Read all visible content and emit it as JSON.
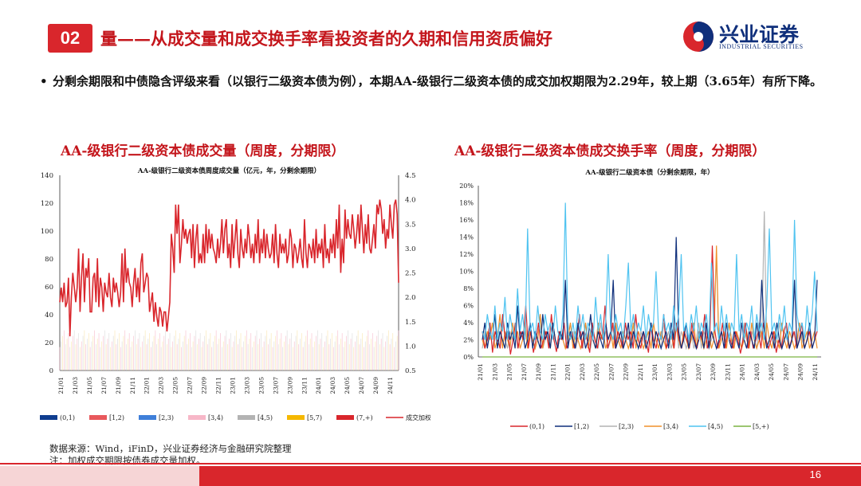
{
  "header": {
    "badge": "02",
    "title": "量——从成交量和成交换手率看投资者的久期和信用资质偏好"
  },
  "logo": {
    "name_cn": "兴业证券",
    "name_en": "INDUSTRIAL SECURITIES",
    "icon": "industrial-securities-logo-icon"
  },
  "bullet": {
    "dot": "•",
    "text": "分剩余期限和中债隐含评级来看（以银行二级资本债为例），本期AA-级银行二级资本债的成交加权期限为2.29年，较上期（3.65年）有所下降。"
  },
  "panels": {
    "left_title": "AA-级银行二级资本债成交量（周度，分期限）",
    "right_title": "AA-级银行二级资本债成交换手率（周度，分期限）"
  },
  "notes": {
    "source": "数据来源：Wind，iFinD，兴业证券经济与金融研究院整理",
    "remark": "注：加权成交期限按债券成交量加权。"
  },
  "page_number": "16",
  "colors": {
    "brand_red": "#d9262c",
    "brand_blue": "#0f2f7b"
  },
  "chart_data": [
    {
      "type": "bar",
      "title": "AA-级银行二级资本债周度成交量（亿元，年，分剩余期限）",
      "ylim": [
        0,
        140
      ],
      "y_ticks": [
        "0",
        "20",
        "40",
        "60",
        "80",
        "100",
        "120",
        "140"
      ],
      "y2lim": [
        0.5,
        4.5
      ],
      "y2_ticks": [
        "0.5",
        "1.0",
        "1.5",
        "2.0",
        "2.5",
        "3.0",
        "3.5",
        "4.0",
        "4.5"
      ],
      "x_ticks": [
        "21/01",
        "21/03",
        "21/05",
        "21/07",
        "21/09",
        "21/11",
        "22/01",
        "22/03",
        "22/05",
        "22/07",
        "22/09",
        "22/11",
        "23/01",
        "23/03",
        "23/05",
        "23/07",
        "23/09",
        "23/11",
        "24/01",
        "24/03",
        "24/05",
        "24/07",
        "24/09",
        "24/11"
      ],
      "legend": [
        "(0,1)",
        "[1,2)",
        "[2,3)",
        "[3,4)",
        "[4,5)",
        "[5,7)",
        "(7,+)",
        "成交加权期限，右"
      ],
      "series_colors": [
        "#0f3d8f",
        "#e8585c",
        "#3f7fd9",
        "#f7b7c8",
        "#b3b3b3",
        "#f5b800",
        "#d9262c",
        "#d9262c"
      ],
      "series": [
        {
          "name": "成交加权期限，右",
          "axis": "right",
          "values": [
            1.9,
            2.2,
            1.9,
            2.3,
            1.8,
            1.9,
            2.4,
            1.2,
            2.0,
            2.5,
            2.2,
            1.9,
            2.2,
            3.0,
            1.7,
            2.4,
            2.9,
            1.9,
            2.6,
            2.4,
            2.8,
            1.7,
            1.7,
            2.4,
            2.5,
            1.9,
            2.8,
            1.8,
            2.4,
            2.2,
            1.7,
            2.3,
            2.1,
            2.0,
            2.5,
            2.0,
            1.8,
            2.4,
            2.1,
            2.3,
            2.1,
            1.8,
            2.1,
            2.9,
            1.9,
            3.0,
            2.3,
            2.6,
            2.3,
            2.2,
            1.8,
            2.3,
            2.6,
            2.0,
            2.4,
            1.9,
            2.7,
            2.9,
            2.1,
            2.3,
            2.5,
            2.4,
            1.7,
            1.9,
            2.1,
            1.5,
            1.9,
            1.6,
            1.4,
            1.8,
            1.7,
            1.4,
            1.7,
            1.7,
            1.3,
            1.6,
            1.9,
            3.3,
            3.0,
            2.5,
            3.9,
            3.3,
            3.9,
            2.7,
            3.1,
            3.6,
            3.2,
            3.4,
            3.1,
            3.3,
            3.4,
            2.8,
            3.5,
            2.6,
            3.2,
            3.5,
            2.7,
            2.9,
            2.7,
            3.3,
            2.7,
            3.5,
            2.9,
            3.4,
            3.0,
            3.3,
            3.0,
            2.9,
            2.7,
            3.2,
            2.8,
            3.1,
            3.6,
            2.9,
            3.4,
            3.6,
            2.8,
            3.1,
            2.6,
            3.5,
            2.8,
            3.2,
            3.6,
            2.9,
            2.6,
            3.4,
            3.0,
            2.8,
            3.2,
            2.9,
            3.5,
            3.2,
            2.8,
            3.1,
            2.7,
            3.3,
            2.9,
            3.6,
            2.7,
            3.2,
            2.9,
            3.4,
            2.8,
            3.3,
            3.0,
            2.8,
            2.9,
            3.3,
            2.7,
            3.5,
            2.9,
            2.6,
            3.3,
            2.9,
            3.1,
            2.9,
            3.2,
            2.7,
            2.9,
            3.4,
            3.2,
            2.6,
            3.1,
            3.0,
            2.7,
            2.9,
            3.2,
            2.8,
            2.6,
            3.6,
            2.9,
            2.6,
            3.1,
            3.0,
            2.8,
            3.2,
            2.7,
            3.4,
            2.8,
            3.1,
            2.9,
            3.2,
            2.6,
            3.5,
            2.8,
            3.0,
            2.7,
            3.2,
            2.9,
            3.3,
            2.8,
            3.6,
            3.0,
            3.9,
            2.5,
            3.2,
            2.7,
            3.8,
            3.2,
            3.6,
            3.3,
            3.2,
            3.7,
            3.4,
            3.0,
            3.3,
            3.7,
            3.1,
            3.9,
            3.4,
            2.9,
            3.5,
            3.1,
            3.7,
            3.0,
            2.9,
            3.2,
            3.5,
            3.0,
            3.9,
            3.7,
            4.0,
            3.8,
            3.3,
            3.6,
            3.0,
            3.4,
            3.2,
            3.9,
            3.5,
            3.2,
            3.9,
            4.0,
            3.7,
            2.3
          ]
        }
      ]
    },
    {
      "type": "line",
      "title": "AA-级银行二级资本债（分剩余期限，年）",
      "ylim": [
        0,
        20
      ],
      "y_ticks": [
        "0%",
        "2%",
        "4%",
        "6%",
        "8%",
        "10%",
        "12%",
        "14%",
        "16%",
        "18%",
        "20%"
      ],
      "x_ticks": [
        "21/01",
        "21/03",
        "21/05",
        "21/07",
        "21/09",
        "21/11",
        "22/01",
        "22/03",
        "22/05",
        "22/07",
        "22/09",
        "22/11",
        "23/01",
        "23/03",
        "23/05",
        "23/07",
        "23/09",
        "23/11",
        "24/01",
        "24/03",
        "24/05",
        "24/07",
        "24/09",
        "24/11"
      ],
      "series_colors": [
        "#d9262c",
        "#0f2f7b",
        "#b3b3b3",
        "#f0902a",
        "#4fc3f0",
        "#7cb342"
      ],
      "series": [
        {
          "name": "(0,1)",
          "values": [
            3,
            1,
            2,
            4,
            0.5,
            3,
            2,
            1,
            5,
            2,
            3,
            0.3,
            2,
            4,
            1,
            3,
            2,
            6,
            1,
            3,
            0.5,
            2,
            4,
            1,
            2,
            3,
            1,
            5,
            2,
            0.6,
            3,
            2,
            4,
            1,
            2,
            3,
            1,
            2,
            5,
            1,
            3,
            2,
            0.5,
            4,
            2,
            1,
            3,
            2,
            6,
            1,
            2,
            4,
            1,
            3,
            2,
            1,
            4,
            2,
            3,
            1,
            5,
            2,
            1,
            3,
            2,
            0.5,
            4,
            2,
            1,
            3,
            2,
            5,
            1,
            2,
            3,
            1,
            4,
            2,
            1,
            3,
            2,
            1,
            4,
            2,
            1,
            3,
            2,
            5,
            1,
            2,
            13,
            3,
            1,
            2,
            4,
            1,
            3,
            2,
            1,
            3,
            2,
            0.4,
            2,
            4,
            1,
            3,
            1,
            2,
            3,
            1,
            4,
            2,
            1,
            2,
            3,
            0.5,
            2,
            1,
            3,
            4,
            1,
            2,
            3,
            1,
            2,
            4,
            1,
            2,
            3,
            1,
            2,
            3
          ]
        },
        {
          "name": "[1,2)",
          "values": [
            2,
            4,
            1,
            3,
            2,
            5,
            1,
            3,
            2,
            1,
            4,
            2,
            3,
            1,
            6,
            2,
            3,
            1,
            2,
            4,
            1,
            3,
            2,
            1,
            5,
            2,
            3,
            1,
            4,
            2,
            1,
            3,
            2,
            9,
            1,
            3,
            2,
            1,
            4,
            2,
            3,
            1,
            2,
            5,
            2,
            1,
            3,
            2,
            1,
            4,
            2,
            3,
            9,
            1,
            2,
            3,
            1,
            2,
            4,
            1,
            3,
            2,
            1,
            2,
            3,
            1,
            2,
            4,
            1,
            3,
            2,
            1,
            2,
            3,
            1,
            4,
            2,
            14,
            3,
            1,
            2,
            4,
            1,
            3,
            2,
            1,
            2,
            3,
            1,
            4,
            1,
            3,
            2,
            1,
            2,
            3,
            1,
            4,
            2,
            1,
            3,
            2,
            1,
            4,
            2,
            1,
            3,
            2,
            1,
            4,
            2,
            9,
            3,
            1,
            2,
            3,
            1,
            4,
            2,
            1,
            2,
            3,
            1,
            2,
            9,
            1,
            2,
            3,
            1,
            2,
            4,
            1,
            2,
            9
          ]
        },
        {
          "name": "[2,3)",
          "values": [
            1,
            3,
            2,
            4,
            1,
            2,
            3,
            1,
            5,
            2,
            1,
            3,
            2,
            4,
            1,
            2,
            3,
            1,
            2,
            4,
            1,
            3,
            2,
            5,
            1,
            2,
            3,
            1,
            4,
            2,
            1,
            3,
            2,
            1,
            4,
            2,
            3,
            1,
            2,
            3,
            1,
            4,
            2,
            1,
            3,
            2,
            1,
            4,
            2,
            3,
            1,
            2,
            4,
            1,
            3,
            2,
            1,
            2,
            3,
            1,
            4,
            2,
            1,
            3,
            2,
            1,
            2,
            4,
            1,
            3,
            2,
            1,
            4,
            2,
            3,
            1,
            2,
            4,
            1,
            3,
            2,
            1,
            2,
            3,
            1,
            2,
            4,
            1,
            3,
            2,
            1,
            2,
            3,
            12,
            1,
            2,
            3,
            1,
            4,
            2,
            1,
            3,
            2,
            1,
            4,
            2,
            1,
            3,
            2,
            1,
            4,
            2,
            17,
            1,
            2,
            3,
            1,
            2,
            4,
            1,
            3,
            2,
            1,
            2,
            3,
            1,
            4,
            2,
            1,
            2,
            3,
            1,
            2,
            3
          ]
        },
        {
          "name": "[3,4)",
          "values": [
            2,
            1,
            3,
            2,
            4,
            1,
            2,
            5,
            1,
            3,
            2,
            1,
            4,
            2,
            3,
            1,
            2,
            4,
            1,
            3,
            2,
            1,
            2,
            5,
            1,
            3,
            2,
            1,
            4,
            2,
            1,
            3,
            2,
            1,
            2,
            4,
            1,
            3,
            2,
            1,
            2,
            4,
            1,
            3,
            2,
            1,
            4,
            2,
            3,
            1,
            2,
            3,
            1,
            4,
            2,
            1,
            3,
            2,
            1,
            2,
            4,
            1,
            3,
            2,
            1,
            2,
            3,
            1,
            4,
            2,
            1,
            3,
            2,
            1,
            2,
            3,
            1,
            4,
            2,
            1,
            3,
            2,
            1,
            2,
            4,
            1,
            3,
            2,
            1,
            2,
            3,
            1,
            2,
            13,
            1,
            2,
            3,
            1,
            4,
            2,
            1,
            3,
            2,
            1,
            2,
            3,
            1,
            4,
            2,
            1,
            2,
            3,
            1,
            4,
            2,
            1,
            3,
            2,
            1,
            4,
            2,
            1,
            3,
            2,
            1,
            2,
            4,
            1,
            2,
            3,
            1,
            2,
            3,
            1
          ]
        },
        {
          "name": "[4,5)",
          "values": [
            3,
            2,
            5,
            3,
            2,
            6,
            2,
            4,
            3,
            7,
            2,
            5,
            3,
            2,
            8,
            3,
            5,
            2,
            15,
            3,
            4,
            2,
            6,
            3,
            2,
            5,
            3,
            4,
            2,
            6,
            3,
            2,
            5,
            18,
            3,
            2,
            4,
            2,
            6,
            3,
            5,
            2,
            4,
            3,
            2,
            7,
            3,
            5,
            2,
            4,
            12,
            3,
            2,
            5,
            3,
            4,
            2,
            6,
            11,
            3,
            5,
            2,
            4,
            3,
            6,
            2,
            5,
            3,
            4,
            10,
            3,
            2,
            5,
            3,
            4,
            2,
            6,
            3,
            5,
            12,
            3,
            4,
            2,
            5,
            3,
            6,
            2,
            4,
            3,
            5,
            2,
            11,
            3,
            4,
            2,
            6,
            3,
            5,
            2,
            4,
            3,
            12,
            3,
            5,
            2,
            4,
            3,
            6,
            2,
            5,
            3,
            4,
            2,
            6,
            15,
            3,
            4,
            2,
            5,
            3,
            6,
            2,
            4,
            3,
            16,
            5,
            3,
            4,
            2,
            6,
            3,
            5,
            10,
            3
          ]
        },
        {
          "name": "[5,+)",
          "values": [
            0,
            0,
            0,
            0,
            0,
            0,
            0,
            0,
            0,
            0,
            0,
            0,
            0,
            0,
            0,
            0,
            0,
            0,
            0,
            0,
            0,
            0,
            0,
            0,
            0,
            0,
            0,
            0,
            0,
            0,
            0,
            0,
            0,
            0,
            0,
            0,
            0,
            0,
            0,
            0,
            0,
            0,
            0,
            0,
            0,
            0,
            0,
            0,
            0,
            0,
            0,
            0,
            0,
            0,
            0,
            0,
            0,
            0,
            0,
            0,
            0,
            0,
            0,
            0,
            0,
            0,
            0,
            0,
            0,
            0,
            0,
            0,
            0,
            0,
            0,
            0,
            0,
            0,
            0,
            0,
            0,
            0,
            0,
            0,
            0,
            0,
            0,
            0,
            0,
            0,
            0,
            0,
            0,
            0,
            0,
            0,
            0,
            0,
            0,
            0,
            0,
            0,
            0,
            0,
            0,
            0,
            0,
            0,
            0,
            0,
            0,
            0,
            0,
            0,
            0,
            0,
            0,
            0,
            0,
            0,
            0,
            0,
            0,
            0,
            0,
            0,
            0,
            0,
            0,
            0,
            0,
            0,
            0,
            0
          ]
        }
      ]
    }
  ]
}
